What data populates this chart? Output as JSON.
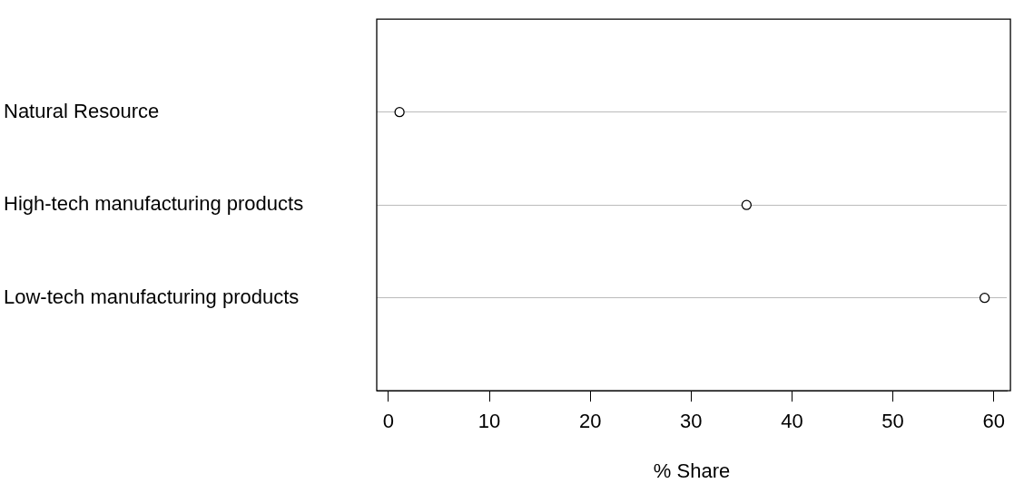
{
  "chart_data": {
    "type": "scatter",
    "orientation": "horizontal",
    "categories": [
      "Natural Resource",
      "High-tech manufacturing products",
      "Low-tech manufacturing products"
    ],
    "values": [
      1.1,
      35.5,
      59.1
    ],
    "color": "#000000",
    "marker": "circle",
    "xlabel": "% Share",
    "xlim": [
      -1.16,
      61.3
    ],
    "xticks": [
      0,
      10,
      20,
      30,
      40,
      50,
      60
    ],
    "grid": "y"
  }
}
